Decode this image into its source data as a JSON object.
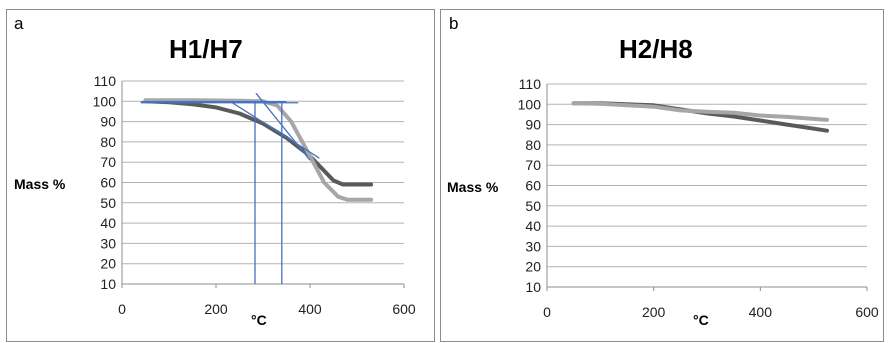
{
  "chart_data": [
    {
      "panel": "a",
      "type": "line",
      "title": "H1/H7",
      "xlabel": "°C",
      "ylabel": "Mass %",
      "xlim": [
        0,
        600
      ],
      "ylim": [
        10,
        110
      ],
      "xticks": [
        0,
        200,
        400,
        600
      ],
      "yticks": [
        10,
        20,
        30,
        40,
        50,
        60,
        70,
        80,
        90,
        100,
        110
      ],
      "grid": "horizontal",
      "series": [
        {
          "color": "#5a5a5a",
          "x": [
            50,
            100,
            150,
            200,
            250,
            300,
            350,
            400,
            450,
            470,
            530
          ],
          "y": [
            100,
            99.5,
            98.5,
            97,
            94,
            89,
            82,
            73,
            61,
            59,
            59
          ]
        },
        {
          "color": "#a6a6a6",
          "x": [
            50,
            150,
            250,
            300,
            330,
            360,
            400,
            430,
            460,
            480,
            530
          ],
          "y": [
            100.5,
            100.5,
            100.3,
            100,
            98,
            90,
            73,
            60,
            53,
            51.5,
            51.5
          ]
        }
      ],
      "tangent_lines": {
        "color": "#4472c4",
        "segments": [
          {
            "x": [
              40,
              325
            ],
            "y": [
              99.8,
              99.3
            ]
          },
          {
            "x": [
              40,
              375
            ],
            "y": [
              99.3,
              99.3
            ]
          },
          {
            "x": [
              40,
              350
            ],
            "y": [
              99.8,
              99.8
            ]
          },
          {
            "x": [
              230,
              420
            ],
            "y": [
              100,
              72
            ]
          },
          {
            "x": [
              285,
              400
            ],
            "y": [
              104,
              71
            ]
          }
        ],
        "vertical_markers": [
          {
            "x": 283,
            "y": [
              10,
              100
            ]
          },
          {
            "x": 340,
            "y": [
              10,
              100
            ]
          }
        ]
      }
    },
    {
      "panel": "b",
      "type": "line",
      "title": "H2/H8",
      "xlabel": "°C",
      "ylabel": "Mass %",
      "xlim": [
        0,
        600
      ],
      "ylim": [
        10,
        110
      ],
      "xticks": [
        0,
        200,
        400,
        600
      ],
      "yticks": [
        10,
        20,
        30,
        40,
        50,
        60,
        70,
        80,
        90,
        100,
        110
      ],
      "grid": "horizontal",
      "series": [
        {
          "color": "#5a5a5a",
          "x": [
            50,
            100,
            200,
            250,
            300,
            350,
            400,
            450,
            525
          ],
          "y": [
            100.5,
            100.5,
            99.5,
            97.5,
            95.5,
            94,
            92,
            90,
            87
          ]
        },
        {
          "color": "#a6a6a6",
          "x": [
            50,
            100,
            200,
            250,
            300,
            350,
            400,
            450,
            525
          ],
          "y": [
            100.5,
            100.3,
            98.8,
            97,
            96.3,
            95.8,
            94.5,
            93.8,
            92.3
          ]
        }
      ]
    }
  ],
  "panels": {
    "a": {
      "letter": "a"
    },
    "b": {
      "letter": "b"
    }
  }
}
